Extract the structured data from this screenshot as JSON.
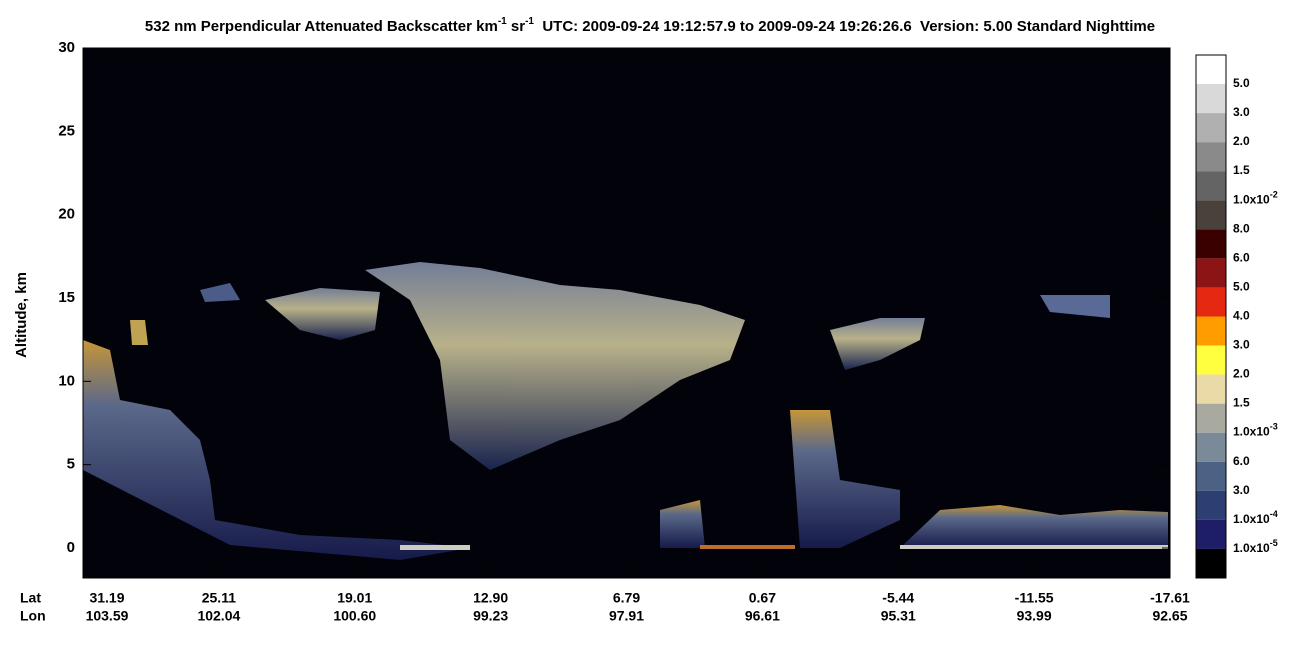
{
  "chart_data": {
    "type": "curtain",
    "title": [
      "532 nm Perpendicular Attenuated Backscatter km",
      "-1",
      " sr",
      "-1",
      "  UTC: 2009-09-24 19:12:57.9 to 2009-09-24 19:26:26.6  Version: 5.00 Standard Nighttime"
    ],
    "y_label": "Altitude, km",
    "ylim": [
      -1.8,
      30
    ],
    "yticks": [
      0,
      5,
      10,
      15,
      20,
      25,
      30
    ],
    "x_row_names": [
      "Lat",
      "Lon"
    ],
    "lat": [
      "31.19",
      "25.11",
      "19.01",
      "12.90",
      "6.79",
      "0.67",
      "-5.44",
      "-11.55",
      "-17.61"
    ],
    "lon": [
      "103.59",
      "102.04",
      "100.60",
      "99.23",
      "97.91",
      "96.61",
      "95.31",
      "93.99",
      "92.65"
    ],
    "colorbar": {
      "colors": [
        "#ffffff",
        "#d9d9d9",
        "#b0b0b0",
        "#8a8a8a",
        "#646464",
        "#4a403c",
        "#3a0000",
        "#8c1414",
        "#e42812",
        "#ff9c00",
        "#ffff40",
        "#eadaa8",
        "#a8aaa0",
        "#7a8a98",
        "#4c6284",
        "#2c3e72",
        "#1e1e68",
        "#000000"
      ],
      "labels": [
        [
          "5.0"
        ],
        [
          "3.0"
        ],
        [
          "2.0"
        ],
        [
          "1.5"
        ],
        [
          "1.0x10",
          "-2"
        ],
        [
          "8.0"
        ],
        [
          "6.0"
        ],
        [
          "5.0"
        ],
        [
          "4.0"
        ],
        [
          "3.0"
        ],
        [
          "2.0"
        ],
        [
          "1.5"
        ],
        [
          "1.0x10",
          "-3"
        ],
        [
          "6.0"
        ],
        [
          "3.0"
        ],
        [
          "1.0x10",
          "-4"
        ],
        [
          "1.0x10",
          "-5"
        ]
      ]
    }
  }
}
